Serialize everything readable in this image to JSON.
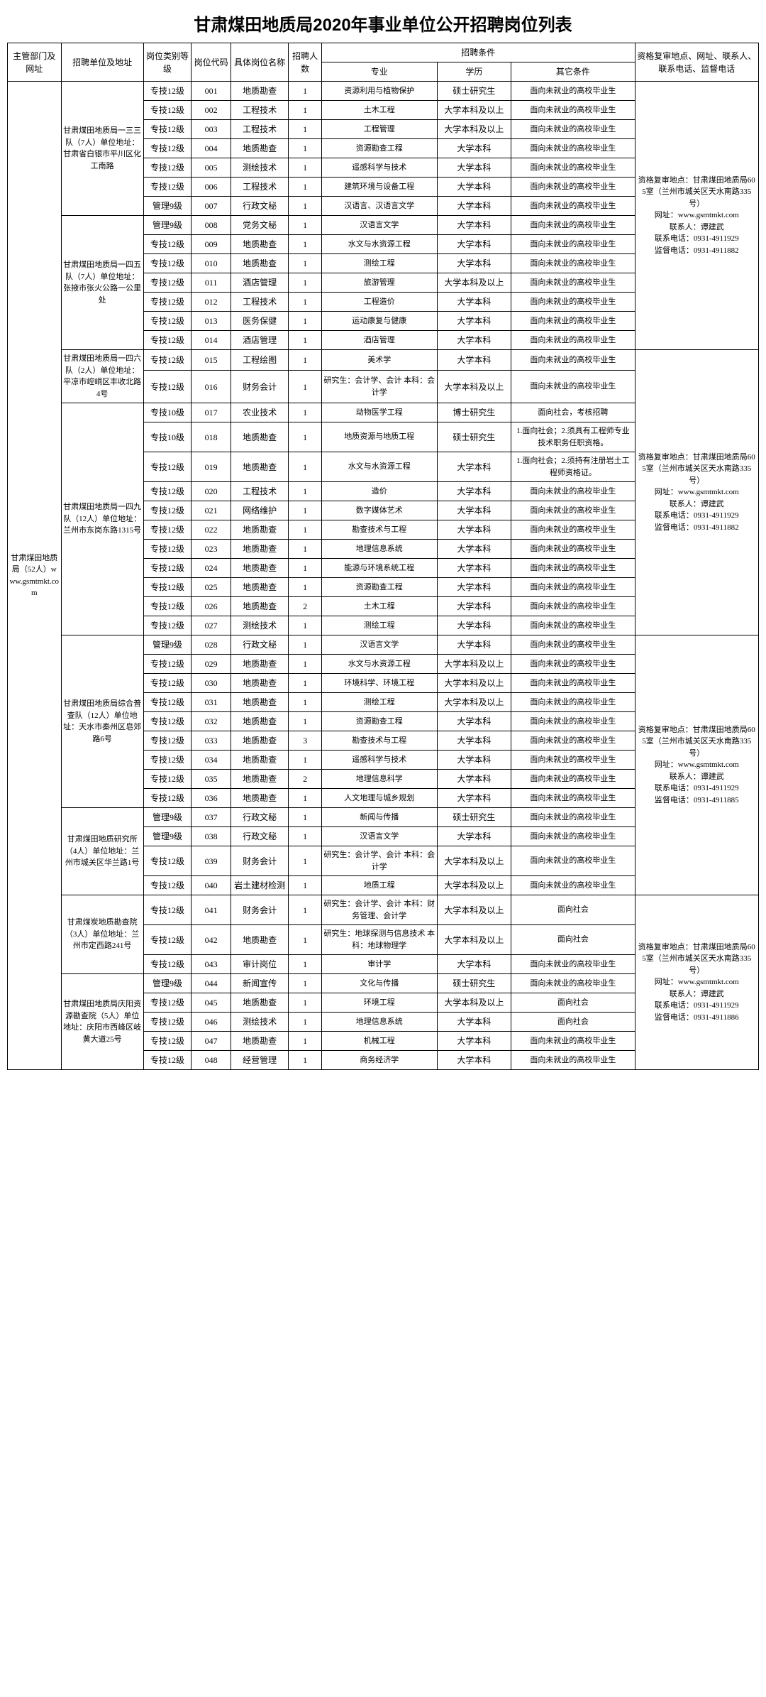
{
  "title": "甘肃煤田地质局2020年事业单位公开招聘岗位列表",
  "headers": {
    "h0": "主管部门及网址",
    "h1": "招聘单位及地址",
    "h2": "岗位类别等级",
    "h3": "岗位代码",
    "h4": "具体岗位名称",
    "h5": "招聘人数",
    "h6": "招聘条件",
    "h6a": "专业",
    "h6b": "学历",
    "h6c": "其它条件",
    "h7": "资格复审地点、网址、联系人、联系电话、监督电话"
  },
  "dept": "甘肃煤田地质局（52人）www.gsmtmkt.com",
  "units": [
    {
      "name": "甘肃煤田地质局一三三队（7人）单位地址：甘肃省白银市平川区化工南路",
      "span": 7
    },
    {
      "name": "甘肃煤田地质局一四五队（7人）单位地址：张掖市张火公路一公里处",
      "span": 7
    },
    {
      "name": "甘肃煤田地质局一四六队（2人）单位地址：平凉市崆峒区丰收北路4号",
      "span": 2
    },
    {
      "name": "甘肃煤田地质局一四九队（12人）单位地址：兰州市东岗东路1315号",
      "span": 11
    },
    {
      "name": "甘肃煤田地质局综合普查队（12人）单位地址：天水市秦州区皂郊路6号",
      "span": 9
    },
    {
      "name": "甘肃煤田地质研究所（4人）单位地址：兰州市城关区华兰路1号",
      "span": 4
    },
    {
      "name": "甘肃煤炭地质勘查院（3人）单位地址：兰州市定西路241号",
      "span": 3
    },
    {
      "name": "甘肃煤田地质局庆阳资源勘查院（5人）单位地址：庆阳市西峰区岐黄大道25号",
      "span": 5
    }
  ],
  "contacts": [
    {
      "text": "资格复审地点：甘肃煤田地质局605室（兰州市城关区天水南路335号）\n网址：www.gsmtmkt.com\n联系人：谭建武\n联系电话：0931-4911929\n监督电话：0931-4911882",
      "span": 14
    },
    {
      "text": "资格复审地点：甘肃煤田地质局605室（兰州市城关区天水南路335号）\n网址：www.gsmtmkt.com\n联系人：谭建武\n联系电话：0931-4911929\n监督电话：0931-4911882",
      "span": 13
    },
    {
      "text": "资格复审地点：甘肃煤田地质局605室（兰州市城关区天水南路335号）\n网址：www.gsmtmkt.com\n联系人：谭建武\n联系电话：0931-4911929\n监督电话：0931-4911885",
      "span": 13
    },
    {
      "text": "资格复审地点：甘肃煤田地质局605室（兰州市城关区天水南路335号）\n网址：www.gsmtmkt.com\n联系人：谭建武\n联系电话：0931-4911929\n监督电话：0931-4911886",
      "span": 8
    }
  ],
  "rows": [
    [
      "专技12级",
      "001",
      "地质勘查",
      "1",
      "资源利用与植物保护",
      "硕士研究生",
      "面向未就业的高校毕业生"
    ],
    [
      "专技12级",
      "002",
      "工程技术",
      "1",
      "土木工程",
      "大学本科及以上",
      "面向未就业的高校毕业生"
    ],
    [
      "专技12级",
      "003",
      "工程技术",
      "1",
      "工程管理",
      "大学本科及以上",
      "面向未就业的高校毕业生"
    ],
    [
      "专技12级",
      "004",
      "地质勘查",
      "1",
      "资源勘查工程",
      "大学本科",
      "面向未就业的高校毕业生"
    ],
    [
      "专技12级",
      "005",
      "测绘技术",
      "1",
      "遥感科学与技术",
      "大学本科",
      "面向未就业的高校毕业生"
    ],
    [
      "专技12级",
      "006",
      "工程技术",
      "1",
      "建筑环境与设备工程",
      "大学本科",
      "面向未就业的高校毕业生"
    ],
    [
      "管理9级",
      "007",
      "行政文秘",
      "1",
      "汉语言、汉语言文学",
      "大学本科",
      "面向未就业的高校毕业生"
    ],
    [
      "管理9级",
      "008",
      "党务文秘",
      "1",
      "汉语言文学",
      "大学本科",
      "面向未就业的高校毕业生"
    ],
    [
      "专技12级",
      "009",
      "地质勘查",
      "1",
      "水文与水资源工程",
      "大学本科",
      "面向未就业的高校毕业生"
    ],
    [
      "专技12级",
      "010",
      "地质勘查",
      "1",
      "测绘工程",
      "大学本科",
      "面向未就业的高校毕业生"
    ],
    [
      "专技12级",
      "011",
      "酒店管理",
      "1",
      "旅游管理",
      "大学本科及以上",
      "面向未就业的高校毕业生"
    ],
    [
      "专技12级",
      "012",
      "工程技术",
      "1",
      "工程造价",
      "大学本科",
      "面向未就业的高校毕业生"
    ],
    [
      "专技12级",
      "013",
      "医务保健",
      "1",
      "运动康复与健康",
      "大学本科",
      "面向未就业的高校毕业生"
    ],
    [
      "专技12级",
      "014",
      "酒店管理",
      "1",
      "酒店管理",
      "大学本科",
      "面向未就业的高校毕业生"
    ],
    [
      "专技12级",
      "015",
      "工程绘图",
      "1",
      "美术学",
      "大学本科",
      "面向未就业的高校毕业生"
    ],
    [
      "专技12级",
      "016",
      "财务会计",
      "1",
      "研究生：会计学、会计  本科：会计学",
      "大学本科及以上",
      "面向未就业的高校毕业生"
    ],
    [
      "专技10级",
      "017",
      "农业技术",
      "1",
      "动物医学工程",
      "博士研究生",
      "面向社会，考核招聘"
    ],
    [
      "专技10级",
      "018",
      "地质勘查",
      "1",
      "地质资源与地质工程",
      "硕士研究生",
      "1.面向社会；2.须具有工程师专业技术职务任职资格。"
    ],
    [
      "专技12级",
      "019",
      "地质勘查",
      "1",
      "水文与水资源工程",
      "大学本科",
      "1.面向社会；2.须持有注册岩土工程师资格证。"
    ],
    [
      "专技12级",
      "020",
      "工程技术",
      "1",
      "造价",
      "大学本科",
      "面向未就业的高校毕业生"
    ],
    [
      "专技12级",
      "021",
      "网络维护",
      "1",
      "数字媒体艺术",
      "大学本科",
      "面向未就业的高校毕业生"
    ],
    [
      "专技12级",
      "022",
      "地质勘查",
      "1",
      "勘查技术与工程",
      "大学本科",
      "面向未就业的高校毕业生"
    ],
    [
      "专技12级",
      "023",
      "地质勘查",
      "1",
      "地理信息系统",
      "大学本科",
      "面向未就业的高校毕业生"
    ],
    [
      "专技12级",
      "024",
      "地质勘查",
      "1",
      "能源与环境系统工程",
      "大学本科",
      "面向未就业的高校毕业生"
    ],
    [
      "专技12级",
      "025",
      "地质勘查",
      "1",
      "资源勘查工程",
      "大学本科",
      "面向未就业的高校毕业生"
    ],
    [
      "专技12级",
      "026",
      "地质勘查",
      "2",
      "土木工程",
      "大学本科",
      "面向未就业的高校毕业生"
    ],
    [
      "专技12级",
      "027",
      "测绘技术",
      "1",
      "测绘工程",
      "大学本科",
      "面向未就业的高校毕业生"
    ],
    [
      "管理9级",
      "028",
      "行政文秘",
      "1",
      "汉语言文学",
      "大学本科",
      "面向未就业的高校毕业生"
    ],
    [
      "专技12级",
      "029",
      "地质勘查",
      "1",
      "水文与水资源工程",
      "大学本科及以上",
      "面向未就业的高校毕业生"
    ],
    [
      "专技12级",
      "030",
      "地质勘查",
      "1",
      "环境科学、环境工程",
      "大学本科及以上",
      "面向未就业的高校毕业生"
    ],
    [
      "专技12级",
      "031",
      "地质勘查",
      "1",
      "测绘工程",
      "大学本科及以上",
      "面向未就业的高校毕业生"
    ],
    [
      "专技12级",
      "032",
      "地质勘查",
      "1",
      "资源勘查工程",
      "大学本科",
      "面向未就业的高校毕业生"
    ],
    [
      "专技12级",
      "033",
      "地质勘查",
      "3",
      "勘查技术与工程",
      "大学本科",
      "面向未就业的高校毕业生"
    ],
    [
      "专技12级",
      "034",
      "地质勘查",
      "1",
      "遥感科学与技术",
      "大学本科",
      "面向未就业的高校毕业生"
    ],
    [
      "专技12级",
      "035",
      "地质勘查",
      "2",
      "地理信息科学",
      "大学本科",
      "面向未就业的高校毕业生"
    ],
    [
      "专技12级",
      "036",
      "地质勘查",
      "1",
      "人文地理与城乡规划",
      "大学本科",
      "面向未就业的高校毕业生"
    ],
    [
      "管理9级",
      "037",
      "行政文秘",
      "1",
      "新闻与传播",
      "硕士研究生",
      "面向未就业的高校毕业生"
    ],
    [
      "管理9级",
      "038",
      "行政文秘",
      "1",
      "汉语言文学",
      "大学本科",
      "面向未就业的高校毕业生"
    ],
    [
      "专技12级",
      "039",
      "财务会计",
      "1",
      "研究生：会计学、会计  本科：会计学",
      "大学本科及以上",
      "面向未就业的高校毕业生"
    ],
    [
      "专技12级",
      "040",
      "岩土建材检测",
      "1",
      "地质工程",
      "大学本科及以上",
      "面向未就业的高校毕业生"
    ],
    [
      "专技12级",
      "041",
      "财务会计",
      "1",
      "研究生：会计学、会计  本科：财务管理、会计学",
      "大学本科及以上",
      "面向社会"
    ],
    [
      "专技12级",
      "042",
      "地质勘查",
      "1",
      "研究生：地球探测与信息技术  本科：地球物理学",
      "大学本科及以上",
      "面向社会"
    ],
    [
      "专技12级",
      "043",
      "审计岗位",
      "1",
      "审计学",
      "大学本科",
      "面向未就业的高校毕业生"
    ],
    [
      "管理9级",
      "044",
      "新闻宣传",
      "1",
      "文化与传播",
      "硕士研究生",
      "面向未就业的高校毕业生"
    ],
    [
      "专技12级",
      "045",
      "地质勘查",
      "1",
      "环境工程",
      "大学本科及以上",
      "面向社会"
    ],
    [
      "专技12级",
      "046",
      "测绘技术",
      "1",
      "地理信息系统",
      "大学本科",
      "面向社会"
    ],
    [
      "专技12级",
      "047",
      "地质勘查",
      "1",
      "机械工程",
      "大学本科",
      "面向未就业的高校毕业生"
    ],
    [
      "专技12级",
      "048",
      "经营管理",
      "1",
      "商务经济学",
      "大学本科",
      "面向未就业的高校毕业生"
    ]
  ]
}
